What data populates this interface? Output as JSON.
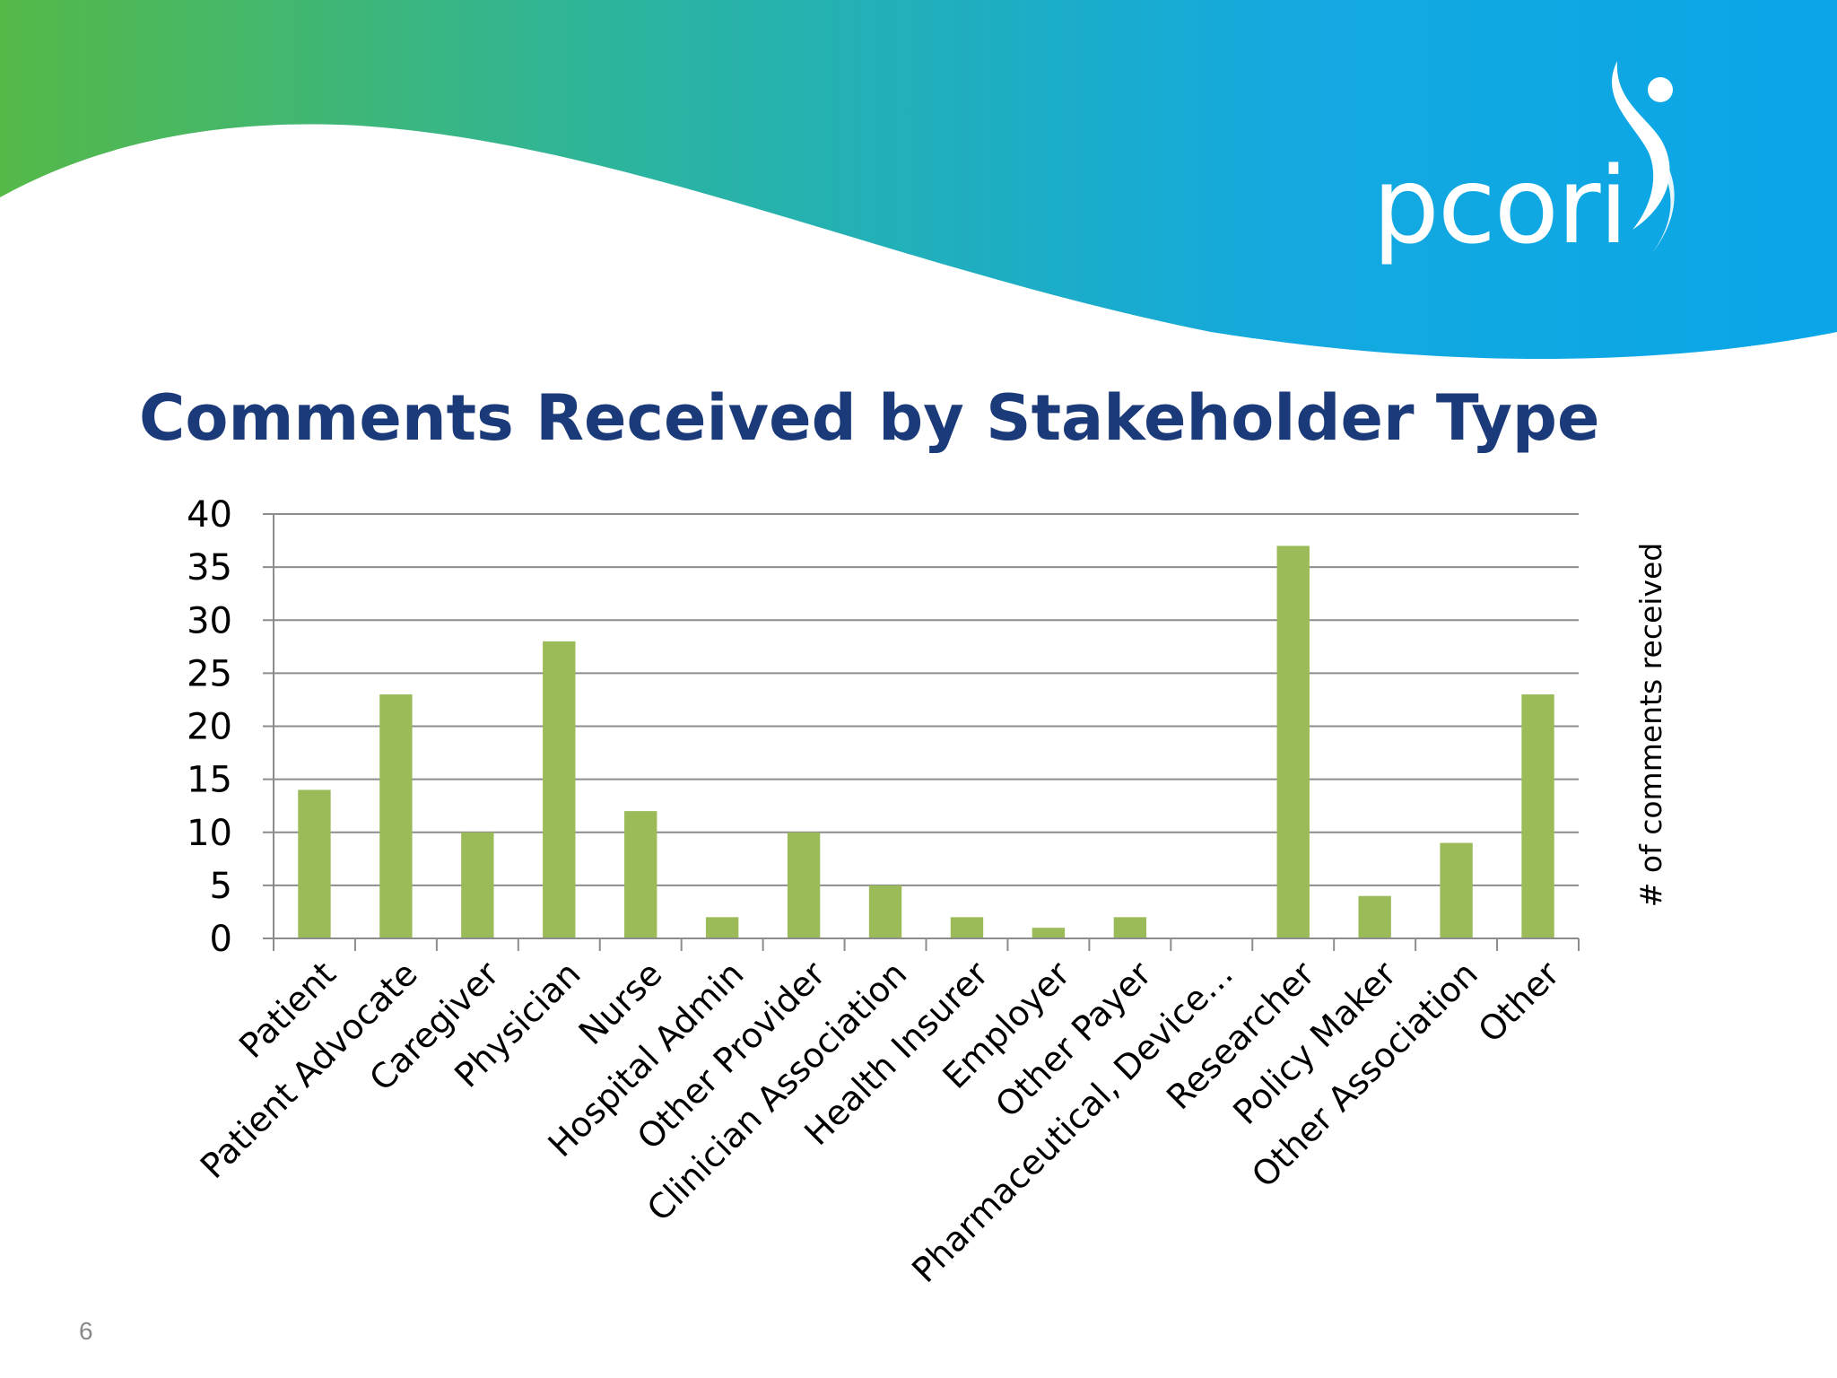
{
  "slide": {
    "title": "Comments Received by Stakeholder Type",
    "page_number": "6",
    "logo_text": "pcori",
    "banner_colors": [
      "#55b948",
      "#2bb4a0",
      "#14a9df",
      "#0aa6e8"
    ],
    "title_color": "#1b3a7a"
  },
  "chart_data": {
    "type": "bar",
    "title": "",
    "xlabel": "",
    "ylabel": "# of comments received",
    "ylim": [
      0,
      40
    ],
    "yticks": [
      0,
      5,
      10,
      15,
      20,
      25,
      30,
      35,
      40
    ],
    "grid": true,
    "bar_color": "#9bbb59",
    "categories": [
      "Patient",
      "Patient Advocate",
      "Caregiver",
      "Physician",
      "Nurse",
      "Hospital Admin",
      "Other Provider",
      "Clinician Association",
      "Health Insurer",
      "Employer",
      "Other Payer",
      "Pharmaceutical, Device…",
      "Researcher",
      "Policy Maker",
      "Other Association",
      "Other"
    ],
    "values": [
      14,
      23,
      10,
      28,
      12,
      2,
      10,
      5,
      2,
      1,
      2,
      0,
      37,
      4,
      9,
      23
    ]
  }
}
